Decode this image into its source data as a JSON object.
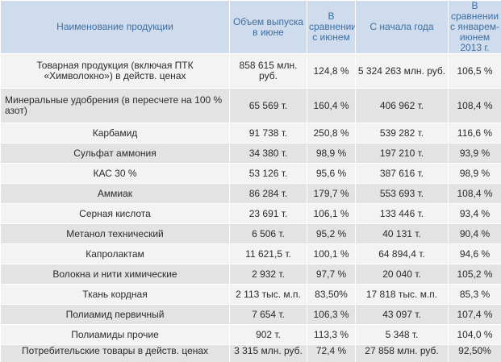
{
  "table": {
    "headers": [
      "Наименование продукции",
      "Объем выпуска в июне",
      "В сравнении с июнем",
      "С начала года",
      "В сравнении с январем-июнем 2013 г."
    ],
    "rows": [
      [
        "Товарная продукция (включая ПТК «Химволокно») в действ. ценах",
        "858 615 млн. руб.",
        "124,8 %",
        "5 324 263 млн. руб.",
        "106,5 %"
      ],
      [
        "Минеральные удобрения (в пересчете на 100 % азот)",
        "65 569 т.",
        "160,4 %",
        "406 962 т.",
        "108,4 %"
      ],
      [
        "Карбамид",
        "91 738 т.",
        "250,8 %",
        "539 282 т.",
        "116,6 %"
      ],
      [
        "Сульфат аммония",
        "34 380 т.",
        "98,9 %",
        "197 210 т.",
        "93,9 %"
      ],
      [
        "КАС 30 %",
        "53 126 т.",
        "95,6 %",
        "387 616 т.",
        "98,9 %"
      ],
      [
        "Аммиак",
        "86 284 т.",
        "179,7 %",
        "553 693 т.",
        "108,4 %"
      ],
      [
        "Серная кислота",
        "23 691 т.",
        "106,1 %",
        "133 446 т.",
        "93,4 %"
      ],
      [
        "Метанол технический",
        "6 506 т.",
        "95,2 %",
        "40 131 т.",
        "90,4 %"
      ],
      [
        "Капролактам",
        "11 621,5 т.",
        "100,1 %",
        "64 894,4 т.",
        "94,6 %"
      ],
      [
        "Волокна и нити химические",
        "2 932 т.",
        "97,7 %",
        "20 040 т.",
        "105,2 %"
      ],
      [
        "Ткань кордная",
        "2 113 тыс. м.п.",
        "83,50%",
        "17 818 тыс. м.п.",
        "85,3 %"
      ],
      [
        "Полиамид первичный",
        "7 654 т.",
        "106,3 %",
        "43 097 т.",
        "107,4 %"
      ],
      [
        "Полиамиды прочие",
        "902 т.",
        "113,3 %",
        "5 348 т.",
        "104,0 %"
      ],
      [
        "Потребительские товары в действ. ценах",
        "3 315 млн. руб.",
        "72,4 %",
        "27 858 млн. руб.",
        "92,50%"
      ]
    ]
  }
}
